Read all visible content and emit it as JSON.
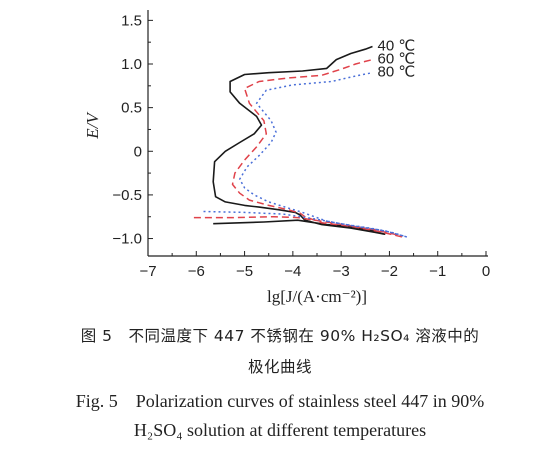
{
  "caption": {
    "zh_line1": "图 5　不同温度下 447 不锈钢在 90% H₂SO₄ 溶液中的",
    "zh_line2": "极化曲线",
    "en_line1": "Fig. 5　Polarization curves of stainless steel 447 in 90%",
    "en_line2": "H₂SO₄ solution at different temperatures"
  },
  "chart_data": {
    "type": "line",
    "title": "",
    "xlabel": "lg[J/(A·cm⁻²)]",
    "ylabel": "E/V",
    "xlim": [
      -7,
      0
    ],
    "ylim": [
      -1.2,
      1.55
    ],
    "xticks": [
      -7,
      -6,
      -5,
      -4,
      -3,
      -2,
      -1,
      0
    ],
    "xtick_labels": [
      "−7",
      "−6",
      "−5",
      "−4",
      "−3",
      "−2",
      "−1",
      "0"
    ],
    "yticks": [
      -1.0,
      -0.5,
      0,
      0.5,
      1.0,
      1.5
    ],
    "ytick_labels": [
      "−1.0",
      "−0.5",
      "0",
      "0.5",
      "1.0",
      "1.5"
    ],
    "grid": false,
    "legend": "top-right, labels beside curve ends",
    "series": [
      {
        "name": "40 ℃",
        "color": "#1a1a1a",
        "dash": "solid",
        "points": [
          [
            -5.65,
            -0.83
          ],
          [
            -4.6,
            -0.81
          ],
          [
            -3.9,
            -0.79
          ],
          [
            -3.3,
            -0.84
          ],
          [
            -2.7,
            -0.87
          ],
          [
            -2.35,
            -0.91
          ],
          [
            -2.1,
            -0.95
          ],
          [
            -2.3,
            -0.93
          ],
          [
            -2.8,
            -0.88
          ],
          [
            -3.4,
            -0.84
          ],
          [
            -3.75,
            -0.79
          ],
          [
            -3.85,
            -0.73
          ],
          [
            -3.95,
            -0.7
          ],
          [
            -4.3,
            -0.67
          ],
          [
            -4.7,
            -0.64
          ],
          [
            -5.0,
            -0.62
          ],
          [
            -5.4,
            -0.58
          ],
          [
            -5.6,
            -0.52
          ],
          [
            -5.65,
            -0.35
          ],
          [
            -5.62,
            -0.12
          ],
          [
            -5.4,
            0.0
          ],
          [
            -5.1,
            0.1
          ],
          [
            -4.8,
            0.2
          ],
          [
            -4.65,
            0.3
          ],
          [
            -4.75,
            0.4
          ],
          [
            -5.1,
            0.55
          ],
          [
            -5.3,
            0.68
          ],
          [
            -5.3,
            0.8
          ],
          [
            -5.0,
            0.88
          ],
          [
            -4.5,
            0.9
          ],
          [
            -3.8,
            0.92
          ],
          [
            -3.3,
            0.95
          ],
          [
            -3.1,
            1.05
          ],
          [
            -2.8,
            1.12
          ],
          [
            -2.5,
            1.17
          ],
          [
            -2.35,
            1.2
          ]
        ]
      },
      {
        "name": "60 ℃",
        "color": "#e0424a",
        "dash": "7,4",
        "points": [
          [
            -6.05,
            -0.76
          ],
          [
            -5.2,
            -0.76
          ],
          [
            -4.4,
            -0.75
          ],
          [
            -3.9,
            -0.76
          ],
          [
            -3.3,
            -0.81
          ],
          [
            -2.75,
            -0.86
          ],
          [
            -2.3,
            -0.9
          ],
          [
            -1.9,
            -0.95
          ],
          [
            -1.75,
            -0.98
          ],
          [
            -2.2,
            -0.92
          ],
          [
            -2.8,
            -0.86
          ],
          [
            -3.4,
            -0.82
          ],
          [
            -3.75,
            -0.75
          ],
          [
            -3.85,
            -0.71
          ],
          [
            -4.1,
            -0.67
          ],
          [
            -4.5,
            -0.62
          ],
          [
            -4.9,
            -0.56
          ],
          [
            -5.1,
            -0.48
          ],
          [
            -5.25,
            -0.38
          ],
          [
            -5.2,
            -0.25
          ],
          [
            -5.0,
            -0.1
          ],
          [
            -4.75,
            0.05
          ],
          [
            -4.55,
            0.2
          ],
          [
            -4.6,
            0.35
          ],
          [
            -4.9,
            0.55
          ],
          [
            -5.0,
            0.72
          ],
          [
            -4.7,
            0.8
          ],
          [
            -4.1,
            0.84
          ],
          [
            -3.4,
            0.87
          ],
          [
            -3.0,
            0.94
          ],
          [
            -2.7,
            1.0
          ],
          [
            -2.5,
            1.03
          ],
          [
            -2.35,
            1.05
          ]
        ]
      },
      {
        "name": "80 ℃",
        "color": "#4a6fd8",
        "dash": "2,3",
        "points": [
          [
            -5.85,
            -0.69
          ],
          [
            -5.0,
            -0.7
          ],
          [
            -4.2,
            -0.72
          ],
          [
            -3.6,
            -0.77
          ],
          [
            -3.0,
            -0.83
          ],
          [
            -2.4,
            -0.88
          ],
          [
            -1.95,
            -0.93
          ],
          [
            -1.65,
            -0.98
          ],
          [
            -2.1,
            -0.91
          ],
          [
            -2.7,
            -0.86
          ],
          [
            -3.3,
            -0.8
          ],
          [
            -3.6,
            -0.74
          ],
          [
            -3.8,
            -0.7
          ],
          [
            -4.1,
            -0.65
          ],
          [
            -4.5,
            -0.58
          ],
          [
            -4.8,
            -0.5
          ],
          [
            -5.0,
            -0.42
          ],
          [
            -5.1,
            -0.32
          ],
          [
            -4.95,
            -0.18
          ],
          [
            -4.7,
            -0.05
          ],
          [
            -4.45,
            0.1
          ],
          [
            -4.35,
            0.22
          ],
          [
            -4.45,
            0.35
          ],
          [
            -4.75,
            0.55
          ],
          [
            -4.55,
            0.7
          ],
          [
            -4.0,
            0.76
          ],
          [
            -3.2,
            0.8
          ],
          [
            -2.8,
            0.85
          ],
          [
            -2.55,
            0.88
          ],
          [
            -2.35,
            0.9
          ]
        ]
      }
    ]
  }
}
